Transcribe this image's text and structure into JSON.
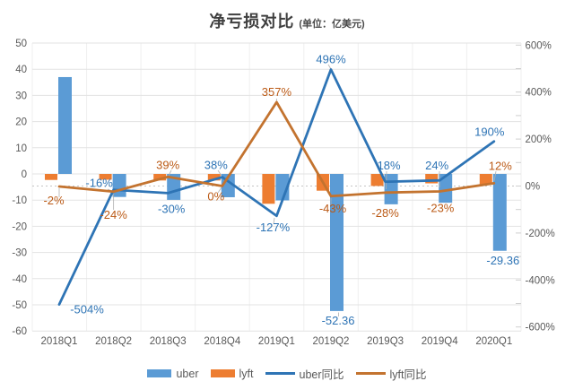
{
  "title": {
    "text": "净亏损对比",
    "unit_note": "(单位：亿美元)"
  },
  "chart_data": {
    "type": "combo-bar-line",
    "title": "净亏损对比",
    "subtitle": "(单位：亿美元)",
    "categories": [
      "2018Q1",
      "2018Q2",
      "2018Q3",
      "2018Q4",
      "2019Q1",
      "2019Q2",
      "2019Q3",
      "2019Q4",
      "2020Q1"
    ],
    "left_axis": {
      "min": -60,
      "max": 50,
      "step": 10,
      "applies_to": "bars"
    },
    "right_axis": {
      "min": -600,
      "max": 600,
      "label_step": 200,
      "tick_step": 100,
      "unit": "%",
      "applies_to": "lines"
    },
    "grid": "horizontal-and-faint-vertical",
    "legend_position": "bottom",
    "series": [
      {
        "name": "uber",
        "type": "bar",
        "axis": "left",
        "color": "#5B9BD5",
        "values": [
          37,
          -8.8,
          -9.9,
          -8.9,
          -10.1,
          -52.36,
          -11.6,
          -11.0,
          -29.36
        ],
        "value_labels": {
          "5": "-52.36",
          "8": "-29.36"
        },
        "label_color": "#2E74B5"
      },
      {
        "name": "lyft",
        "type": "bar",
        "axis": "left",
        "color": "#ED7D31",
        "values": [
          -2.3,
          -2.2,
          -2.5,
          -2.5,
          -11.4,
          -6.4,
          -4.6,
          -3.6,
          -4.0
        ]
      },
      {
        "name": "uber同比",
        "type": "line",
        "axis": "right",
        "color": "#2E74B5",
        "values": [
          -504,
          -16,
          -30,
          38,
          -127,
          496,
          18,
          24,
          190
        ],
        "point_labels": [
          "-504%",
          "-16%",
          "-30%",
          "38%",
          "-127%",
          "496%",
          "18%",
          "24%",
          "190%"
        ],
        "label_color": "#2E74B5"
      },
      {
        "name": "lyft同比",
        "type": "line",
        "axis": "right",
        "color": "#C3732F",
        "values": [
          -2,
          -24,
          39,
          0,
          357,
          -43,
          -28,
          -23,
          12
        ],
        "point_labels": [
          "-2%",
          "-24%",
          "39%",
          "0%",
          "357%",
          "-43%",
          "-28%",
          "-23%",
          "12%"
        ],
        "label_color": "#BB5A16"
      }
    ],
    "legend": [
      "uber",
      "lyft",
      "uber同比",
      "lyft同比"
    ]
  }
}
